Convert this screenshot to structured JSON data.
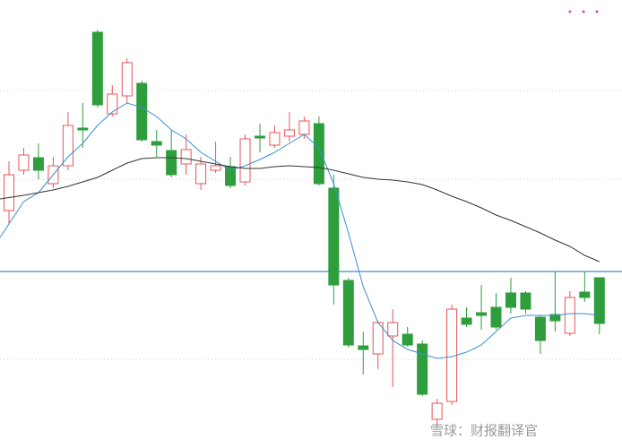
{
  "chart_data": {
    "type": "candlestick",
    "watermark": "雪球：财报翻译官",
    "ylim": [
      0,
      500
    ],
    "grid_values": [
      99,
      300,
      399
    ],
    "reference_line": {
      "value": 197,
      "color": "#3a8fd0"
    },
    "up_color": "#e8545a",
    "down_color": "#2e9e3c",
    "open": [
      265,
      310,
      324,
      295,
      315,
      357,
      464,
      373,
      393,
      407,
      342,
      332,
      317,
      295,
      310,
      314,
      297,
      348,
      338,
      348,
      350,
      362,
      290,
      187,
      114,
      105,
      125,
      127,
      116,
      32,
      52,
      145,
      151,
      157,
      173,
      173,
      146,
      149,
      128,
      174,
      190
    ],
    "high": [
      320,
      335,
      340,
      325,
      375,
      385,
      467,
      405,
      435,
      410,
      355,
      355,
      350,
      325,
      342,
      325,
      350,
      362,
      360,
      375,
      370,
      370,
      305,
      190,
      130,
      142,
      155,
      135,
      120,
      55,
      160,
      157,
      182,
      173,
      190,
      175,
      148,
      197,
      175,
      197,
      190
    ],
    "low": [
      250,
      305,
      300,
      290,
      310,
      335,
      380,
      370,
      385,
      342,
      325,
      302,
      305,
      288,
      307,
      290,
      293,
      330,
      335,
      342,
      345,
      293,
      160,
      112,
      82,
      88,
      68,
      113,
      58,
      20,
      48,
      135,
      132,
      132,
      150,
      150,
      105,
      130,
      125,
      163,
      127
    ],
    "close": [
      305,
      327,
      310,
      315,
      360,
      355,
      383,
      395,
      430,
      344,
      338,
      305,
      333,
      317,
      315,
      293,
      345,
      346,
      352,
      355,
      365,
      295,
      182,
      115,
      110,
      140,
      140,
      115,
      60,
      50,
      155,
      138,
      148,
      135,
      157,
      155,
      120,
      142,
      168,
      168,
      139
    ],
    "series": [
      {
        "color": "#3a8fd0",
        "values": [
          235,
          275,
          285,
          305,
          325,
          340,
          360,
          375,
          385,
          380,
          370,
          355,
          345,
          330,
          320,
          310,
          315,
          322,
          330,
          340,
          350,
          335,
          295,
          240,
          180,
          140,
          120,
          110,
          105,
          100,
          102,
          107,
          115,
          130,
          145,
          148,
          148,
          148,
          150,
          150,
          148
        ]
      },
      {
        "color": "#333333",
        "values": [
          278,
          282,
          285,
          288,
          292,
          297,
          302,
          310,
          318,
          323,
          324,
          324,
          323,
          320,
          317,
          314,
          312,
          312,
          314,
          315,
          314,
          313,
          310,
          306,
          302,
          300,
          299,
          297,
          294,
          288,
          281,
          275,
          268,
          260,
          254,
          247,
          240,
          232,
          225,
          215,
          208
        ]
      }
    ]
  }
}
